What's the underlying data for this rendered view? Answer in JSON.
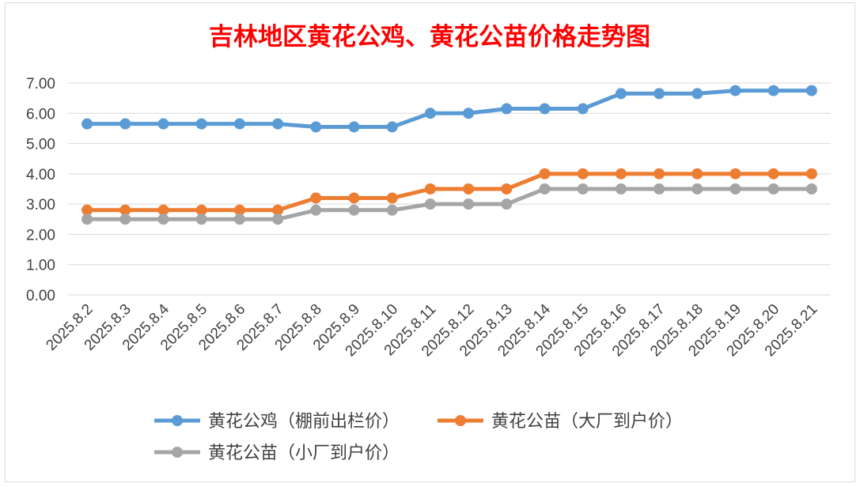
{
  "chart_data": {
    "type": "line",
    "title": "吉林地区黄花公鸡、黄花公苗价格走势图",
    "title_color": "#ff0000",
    "xlabel": "",
    "ylabel": "",
    "categories": [
      "2025.8.2",
      "2025.8.3",
      "2025.8.4",
      "2025.8.5",
      "2025.8.6",
      "2025.8.7",
      "2025.8.8",
      "2025.8.9",
      "2025.8.10",
      "2025.8.11",
      "2025.8.12",
      "2025.8.13",
      "2025.8.14",
      "2025.8.15",
      "2025.8.16",
      "2025.8.17",
      "2025.8.18",
      "2025.8.19",
      "2025.8.20",
      "2025.8.21"
    ],
    "ylim": [
      0,
      7
    ],
    "yticks": [
      "0.00",
      "1.00",
      "2.00",
      "3.00",
      "4.00",
      "5.00",
      "6.00",
      "7.00"
    ],
    "grid": true,
    "legend_position": "bottom",
    "series": [
      {
        "name": "黄花公鸡（棚前出栏价）",
        "color": "#5b9bd5",
        "values": [
          5.65,
          5.65,
          5.65,
          5.65,
          5.65,
          5.65,
          5.55,
          5.55,
          5.55,
          6.0,
          6.0,
          6.15,
          6.15,
          6.15,
          6.65,
          6.65,
          6.65,
          6.75,
          6.75,
          6.75
        ]
      },
      {
        "name": "黄花公苗（大厂到户价）",
        "color": "#ed7d31",
        "values": [
          2.8,
          2.8,
          2.8,
          2.8,
          2.8,
          2.8,
          3.2,
          3.2,
          3.2,
          3.5,
          3.5,
          3.5,
          4.0,
          4.0,
          4.0,
          4.0,
          4.0,
          4.0,
          4.0,
          4.0
        ]
      },
      {
        "name": "黄花公苗（小厂到户价）",
        "color": "#a5a5a5",
        "values": [
          2.5,
          2.5,
          2.5,
          2.5,
          2.5,
          2.5,
          2.8,
          2.8,
          2.8,
          3.0,
          3.0,
          3.0,
          3.5,
          3.5,
          3.5,
          3.5,
          3.5,
          3.5,
          3.5,
          3.5
        ]
      }
    ]
  }
}
